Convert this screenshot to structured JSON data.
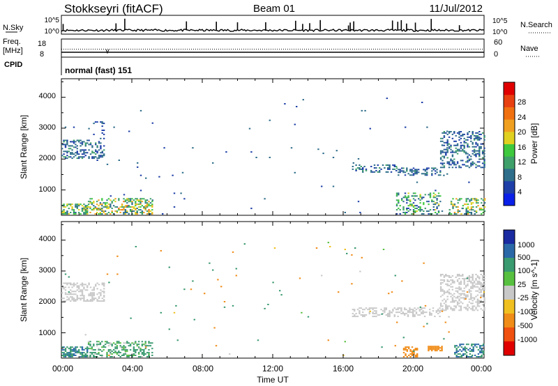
{
  "header": {
    "station": "Stokkseyri (fitACF)",
    "beam": "Beam 01",
    "date": "11/Jul/2012"
  },
  "strips": {
    "nsky_label": "N.Sky",
    "nsearch_label": "N.Search",
    "freq_label": "Freq.",
    "freq_unit": "[MHz]",
    "nave_label": "Nave",
    "cpid_label": "CPID",
    "cpid_text": "normal (fast) 151",
    "noise_left_ticks": [
      "10^5",
      "10^0"
    ],
    "noise_right_ticks": [
      "10^5",
      "10^0"
    ],
    "freq_left_ticks": [
      "18",
      "8"
    ],
    "freq_right_ticks": [
      "60",
      "0"
    ]
  },
  "axes": {
    "ylabel": "Slant Range [km]",
    "xlabel": "Time UT",
    "time_ticks": [
      "00:00",
      "04:00",
      "08:00",
      "12:00",
      "16:00",
      "20:00",
      "00:00"
    ],
    "range_ticks": [
      "1000",
      "2000",
      "3000",
      "4000"
    ]
  },
  "colorbars": {
    "power": {
      "label": "Power [dB]",
      "ticks": [
        "4",
        "8",
        "12",
        "16",
        "20",
        "24",
        "28"
      ],
      "colors": [
        "#0a20e8",
        "#1e3fa8",
        "#2e6e8a",
        "#3fa06a",
        "#3ec83e",
        "#e0d020",
        "#f0a020",
        "#f07010",
        "#e84010",
        "#e00000"
      ]
    },
    "velocity": {
      "label": "Velocity [m s^-1]",
      "ticks": [
        "1000",
        "500",
        "100",
        "25",
        "-25",
        "-100",
        "-500",
        "-1000"
      ],
      "colors": [
        "#1a2aa0",
        "#2a68a8",
        "#3a9a70",
        "#58c040",
        "#c8c8c8",
        "#f0c020",
        "#f08c18",
        "#f05010",
        "#e00000"
      ]
    }
  },
  "chart_data": [
    {
      "type": "line",
      "title": "N.Sky",
      "x_range_hours": [
        0,
        24
      ],
      "ylim_log10": [
        0,
        5
      ],
      "baseline_log10": 0.9,
      "spikes_hours": [
        0.1,
        3.1,
        3.6,
        7.1,
        8.8,
        10.0,
        11.6,
        13.3,
        13.7,
        14.1,
        14.7,
        16.3,
        16.4,
        16.6,
        18.8,
        19.1,
        19.3,
        19.6,
        20.1,
        21.0,
        22.6
      ]
    },
    {
      "type": "line",
      "title": "Freq.",
      "x_range_hours": [
        0,
        24
      ],
      "ylim": [
        8,
        18
      ],
      "freq_mhz": 10.5,
      "nave": 26
    },
    {
      "type": "heatmap",
      "title": "Power",
      "x_range_hours": [
        0,
        24
      ],
      "ylim_km": [
        180,
        4600
      ],
      "zlabel": "Power [dB]",
      "zlim": [
        0,
        30
      ],
      "regions": [
        {
          "t": [
            0.0,
            1.5
          ],
          "r": [
            180,
            520
          ],
          "z": [
            6,
            18
          ],
          "density": 0.6
        },
        {
          "t": [
            1.5,
            5.2
          ],
          "r": [
            180,
            700
          ],
          "z": [
            6,
            22
          ],
          "density": 0.45
        },
        {
          "t": [
            0.0,
            2.4
          ],
          "r": [
            2000,
            2600
          ],
          "z": [
            4,
            10
          ],
          "density": 0.35
        },
        {
          "t": [
            1.8,
            2.4
          ],
          "r": [
            2600,
            3200
          ],
          "z": [
            4,
            8
          ],
          "density": 0.2
        },
        {
          "t": [
            16.5,
            19.0
          ],
          "r": [
            1550,
            1800
          ],
          "z": [
            4,
            10
          ],
          "density": 0.35
        },
        {
          "t": [
            19.0,
            21.5
          ],
          "r": [
            1450,
            1700
          ],
          "z": [
            4,
            10
          ],
          "density": 0.4
        },
        {
          "t": [
            21.5,
            24.0
          ],
          "r": [
            1700,
            2900
          ],
          "z": [
            4,
            10
          ],
          "density": 0.35
        },
        {
          "t": [
            19.0,
            21.5
          ],
          "r": [
            180,
            900
          ],
          "z": [
            4,
            16
          ],
          "density": 0.35
        },
        {
          "t": [
            22.0,
            24.0
          ],
          "r": [
            180,
            700
          ],
          "z": [
            6,
            20
          ],
          "density": 0.4
        },
        {
          "t": [
            0.0,
            24.0
          ],
          "r": [
            180,
            4000
          ],
          "z": [
            4,
            8
          ],
          "density": 0.004
        }
      ]
    },
    {
      "type": "heatmap",
      "title": "Velocity",
      "x_range_hours": [
        0,
        24
      ],
      "ylim_km": [
        180,
        4600
      ],
      "zlabel": "Velocity [m s^-1]",
      "zlim": [
        -1000,
        1000
      ],
      "regions": [
        {
          "t": [
            0.0,
            1.5
          ],
          "r": [
            180,
            520
          ],
          "z": [
            100,
            1000
          ],
          "density": 0.6
        },
        {
          "t": [
            1.5,
            5.2
          ],
          "r": [
            180,
            700
          ],
          "z": [
            -25,
            500
          ],
          "density": 0.45
        },
        {
          "t": [
            0.0,
            2.4
          ],
          "r": [
            2000,
            2600
          ],
          "z": [
            -25,
            25
          ],
          "density": 0.45
        },
        {
          "t": [
            16.5,
            21.5
          ],
          "r": [
            1500,
            1800
          ],
          "z": [
            -25,
            25
          ],
          "density": 0.4
        },
        {
          "t": [
            21.5,
            24.0
          ],
          "r": [
            1700,
            2900
          ],
          "z": [
            -25,
            25
          ],
          "density": 0.4
        },
        {
          "t": [
            20.8,
            21.6
          ],
          "r": [
            380,
            560
          ],
          "z": [
            -500,
            -500
          ],
          "density": 0.9
        },
        {
          "t": [
            19.4,
            20.2
          ],
          "r": [
            180,
            500
          ],
          "z": [
            -500,
            -100
          ],
          "density": 0.6
        },
        {
          "t": [
            22.3,
            24.0
          ],
          "r": [
            180,
            600
          ],
          "z": [
            100,
            1000
          ],
          "density": 0.5
        },
        {
          "t": [
            0.0,
            24.0
          ],
          "r": [
            180,
            4000
          ],
          "z": [
            -500,
            500
          ],
          "density": 0.004
        }
      ]
    }
  ]
}
